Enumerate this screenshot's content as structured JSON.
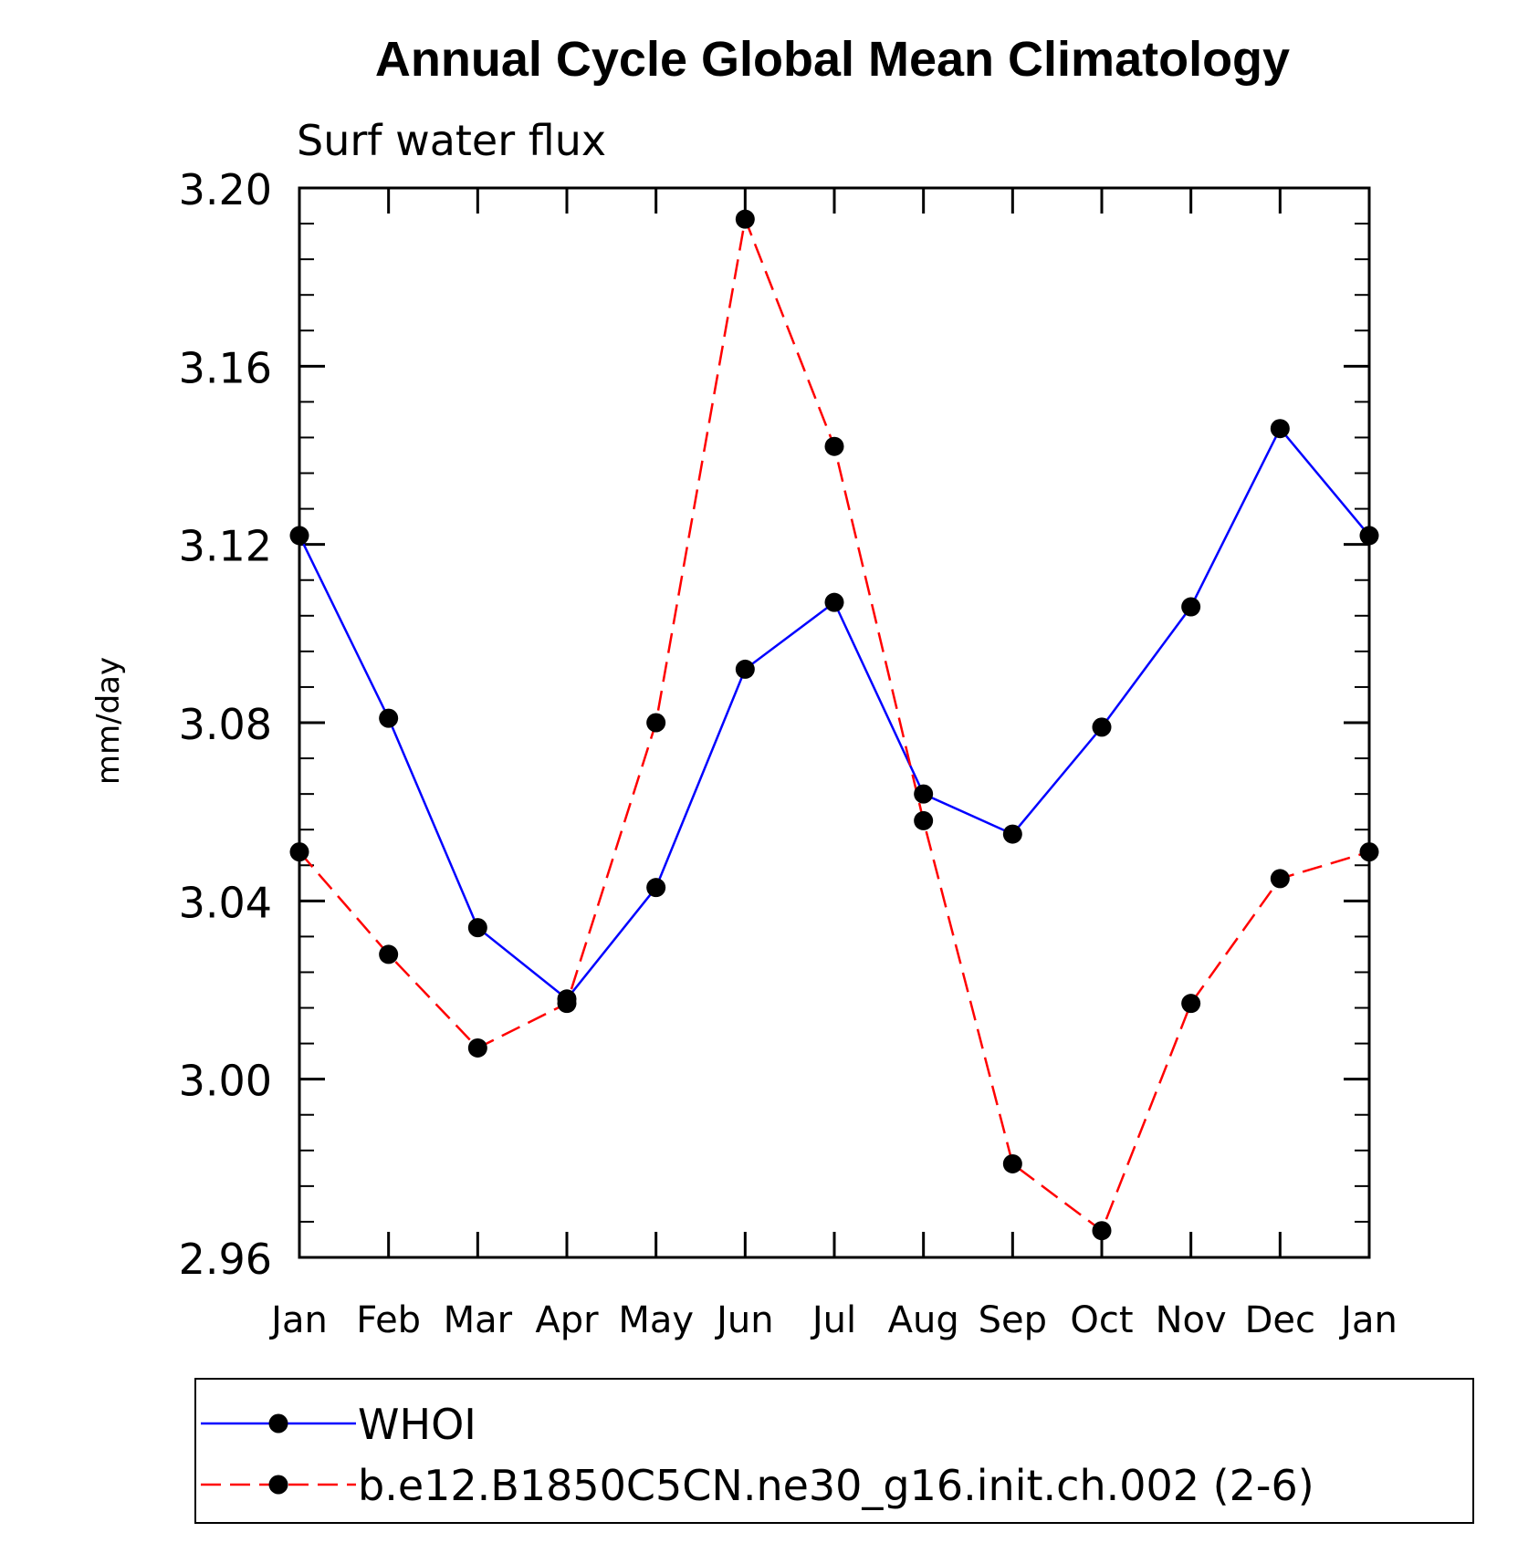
{
  "chart_data": {
    "type": "line",
    "title": "Annual Cycle Global Mean Climatology",
    "subtitle": "Surf water flux",
    "xlabel": "",
    "ylabel": "mm/day",
    "categories": [
      "Jan",
      "Feb",
      "Mar",
      "Apr",
      "May",
      "Jun",
      "Jul",
      "Aug",
      "Sep",
      "Oct",
      "Nov",
      "Dec",
      "Jan"
    ],
    "ylim": [
      2.96,
      3.2
    ],
    "yticks": [
      "2.96",
      "3.00",
      "3.04",
      "3.08",
      "3.12",
      "3.16",
      "3.20"
    ],
    "grid": false,
    "legend_position": "bottom",
    "series": [
      {
        "name": "WHOI",
        "color": "#0000ff",
        "style": "solid",
        "marker": "filled-circle",
        "values": [
          3.122,
          3.081,
          3.034,
          3.018,
          3.043,
          3.092,
          3.107,
          3.064,
          3.055,
          3.079,
          3.106,
          3.146,
          3.122
        ]
      },
      {
        "name": "b.e12.B1850C5CN.ne30_g16.init.ch.002 (2-6)",
        "color": "#ff0000",
        "style": "dashed",
        "marker": "filled-circle",
        "values": [
          3.051,
          3.028,
          3.007,
          3.017,
          3.08,
          3.193,
          3.142,
          3.058,
          2.981,
          2.966,
          3.017,
          3.045,
          3.051
        ]
      }
    ]
  }
}
